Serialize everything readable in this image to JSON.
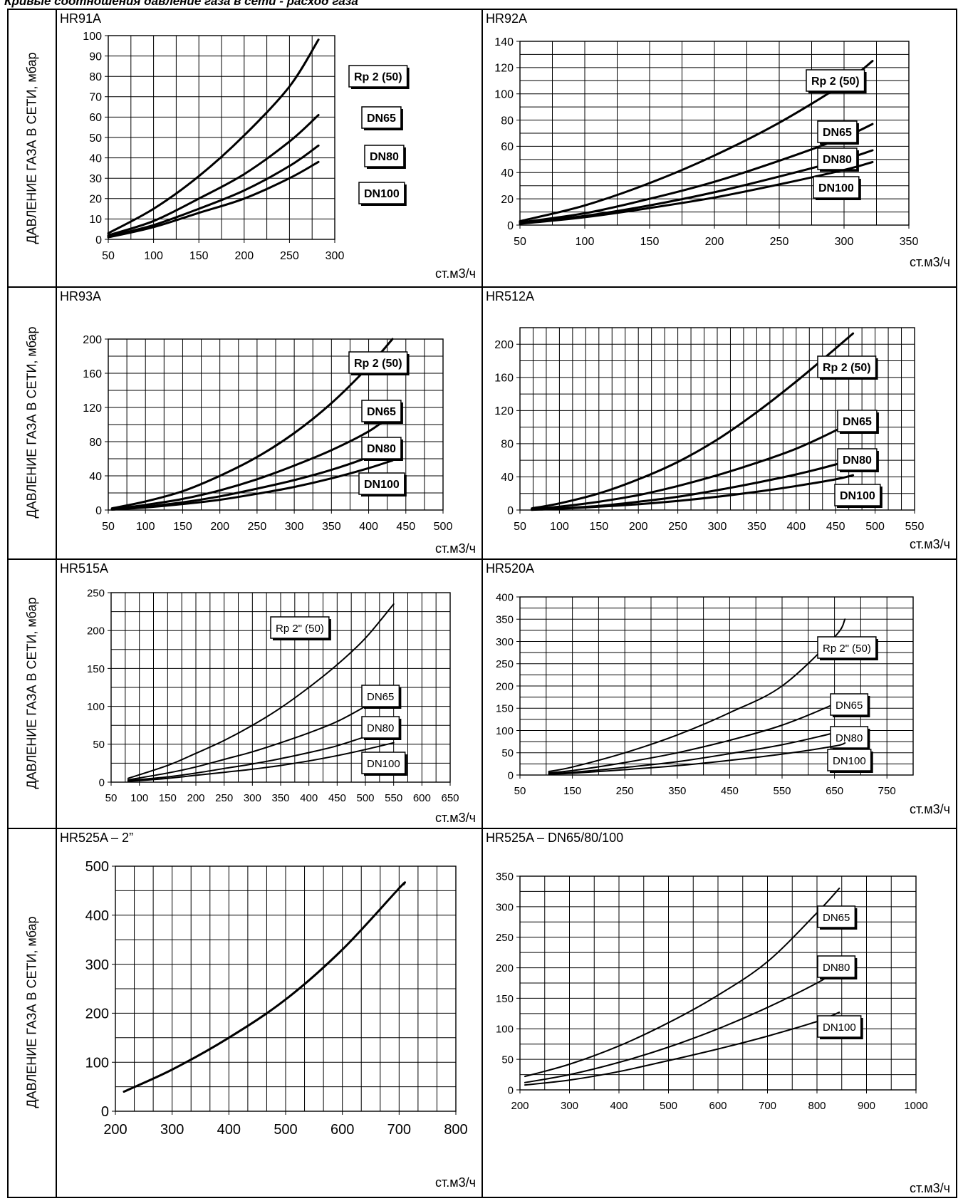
{
  "header": {
    "title": "Кривые соотношения давление газа в сети - расход газа"
  },
  "ylabel": "ДАВЛЕНИЕ ГАЗА В СЕТИ, мбар",
  "unit": "ст.м3/ч",
  "chart_data": [
    {
      "title": "HR91A",
      "type": "line",
      "xlim": [
        50,
        300
      ],
      "ylim": [
        0,
        100
      ],
      "xticks": [
        50,
        100,
        150,
        200,
        250,
        300
      ],
      "yticks": [
        0,
        10,
        20,
        30,
        40,
        50,
        60,
        70,
        80,
        90,
        100
      ],
      "series": [
        {
          "name": "Rp 2 (50)",
          "x": [
            50,
            100,
            150,
            200,
            250,
            282
          ],
          "y": [
            3,
            15,
            31,
            51,
            75,
            98
          ]
        },
        {
          "name": "DN65",
          "x": [
            50,
            100,
            150,
            200,
            250,
            282
          ],
          "y": [
            2,
            9,
            20,
            32,
            48,
            61
          ]
        },
        {
          "name": "DN80",
          "x": [
            50,
            100,
            150,
            200,
            250,
            282
          ],
          "y": [
            1.5,
            7,
            15,
            24,
            36,
            46
          ]
        },
        {
          "name": "DN100",
          "x": [
            50,
            100,
            150,
            200,
            250,
            282
          ],
          "y": [
            1,
            6,
            13,
            20,
            30,
            38
          ]
        }
      ]
    },
    {
      "title": "HR92A",
      "type": "line",
      "xlim": [
        50,
        350
      ],
      "ylim": [
        0,
        140
      ],
      "xticks": [
        50,
        100,
        150,
        200,
        250,
        300,
        350
      ],
      "yticks": [
        0,
        20,
        40,
        60,
        80,
        100,
        120,
        140
      ],
      "series": [
        {
          "name": "Rp 2 (50)",
          "x": [
            50,
            100,
            150,
            200,
            250,
            300,
            322
          ],
          "y": [
            3,
            15,
            32,
            53,
            78,
            108,
            125
          ]
        },
        {
          "name": "DN65",
          "x": [
            50,
            100,
            150,
            200,
            250,
            300,
            322
          ],
          "y": [
            2,
            9,
            20,
            33,
            49,
            67,
            77
          ]
        },
        {
          "name": "DN80",
          "x": [
            50,
            100,
            150,
            200,
            250,
            300,
            322
          ],
          "y": [
            2,
            7,
            15,
            25,
            37,
            50,
            57
          ]
        },
        {
          "name": "DN100",
          "x": [
            50,
            100,
            150,
            200,
            250,
            300,
            322
          ],
          "y": [
            1,
            6,
            13,
            21,
            31,
            42,
            48
          ]
        }
      ]
    },
    {
      "title": "HR93A",
      "type": "line",
      "xlim": [
        50,
        500
      ],
      "ylim": [
        0,
        200
      ],
      "xticks": [
        50,
        100,
        150,
        200,
        250,
        300,
        350,
        400,
        450,
        500
      ],
      "yticks": [
        0,
        40,
        80,
        120,
        160,
        200
      ],
      "series": [
        {
          "name": "Rp 2 (50)",
          "x": [
            55,
            100,
            150,
            200,
            250,
            300,
            350,
            400,
            432
          ],
          "y": [
            2,
            10,
            22,
            40,
            62,
            90,
            125,
            168,
            200
          ]
        },
        {
          "name": "DN65",
          "x": [
            55,
            100,
            150,
            200,
            250,
            300,
            350,
            400,
            432
          ],
          "y": [
            1,
            6,
            13,
            23,
            36,
            52,
            70,
            92,
            112
          ]
        },
        {
          "name": "DN80",
          "x": [
            55,
            100,
            150,
            200,
            250,
            300,
            350,
            400,
            432
          ],
          "y": [
            1,
            4,
            9,
            16,
            25,
            35,
            47,
            62,
            75
          ]
        },
        {
          "name": "DN100",
          "x": [
            55,
            100,
            150,
            200,
            250,
            300,
            350,
            400,
            432
          ],
          "y": [
            0.5,
            3,
            7,
            12,
            19,
            27,
            37,
            49,
            58
          ]
        }
      ]
    },
    {
      "title": "HR512A",
      "type": "line",
      "xlim": [
        50,
        550
      ],
      "ylim": [
        0,
        220
      ],
      "xticks": [
        50,
        100,
        150,
        200,
        250,
        300,
        350,
        400,
        450,
        500,
        550
      ],
      "yticks": [
        0,
        40,
        80,
        120,
        160,
        200
      ],
      "series": [
        {
          "name": "Rp 2 (50)",
          "x": [
            65,
            100,
            150,
            200,
            250,
            300,
            350,
            400,
            450,
            472
          ],
          "y": [
            2,
            8,
            20,
            37,
            58,
            85,
            118,
            155,
            195,
            213
          ]
        },
        {
          "name": "DN65",
          "x": [
            65,
            100,
            150,
            200,
            250,
            300,
            350,
            400,
            450,
            472
          ],
          "y": [
            1,
            4,
            10,
            18,
            29,
            42,
            57,
            74,
            96,
            108
          ]
        },
        {
          "name": "DN80",
          "x": [
            65,
            100,
            150,
            200,
            250,
            300,
            350,
            400,
            450,
            472
          ],
          "y": [
            0.5,
            2,
            5,
            10,
            16,
            24,
            33,
            43,
            55,
            62
          ]
        },
        {
          "name": "DN100",
          "x": [
            65,
            100,
            150,
            200,
            250,
            300,
            350,
            400,
            450,
            472
          ],
          "y": [
            0.3,
            1.5,
            4,
            7,
            11,
            16,
            22,
            29,
            37,
            42
          ]
        }
      ]
    },
    {
      "title": "HR515A",
      "type": "line",
      "xlim": [
        50,
        650
      ],
      "ylim": [
        0,
        250
      ],
      "xticks": [
        50,
        100,
        150,
        200,
        250,
        300,
        350,
        400,
        450,
        500,
        550,
        600,
        650
      ],
      "yticks": [
        0,
        50,
        100,
        150,
        200,
        250
      ],
      "series": [
        {
          "name": "Rp 2\" (50)",
          "x": [
            80,
            150,
            200,
            250,
            300,
            350,
            400,
            450,
            500,
            550
          ],
          "y": [
            5,
            22,
            38,
            55,
            75,
            98,
            125,
            155,
            190,
            235
          ]
        },
        {
          "name": "DN65",
          "x": [
            80,
            150,
            200,
            250,
            300,
            350,
            400,
            450,
            500,
            550
          ],
          "y": [
            3,
            12,
            20,
            30,
            40,
            52,
            65,
            80,
            100,
            122
          ]
        },
        {
          "name": "DN80",
          "x": [
            80,
            150,
            200,
            250,
            300,
            350,
            400,
            450,
            500,
            550
          ],
          "y": [
            2,
            7,
            12,
            18,
            24,
            31,
            39,
            48,
            60,
            72
          ]
        },
        {
          "name": "DN100",
          "x": [
            80,
            150,
            200,
            250,
            300,
            350,
            400,
            450,
            500,
            550
          ],
          "y": [
            1,
            5,
            9,
            13,
            17,
            22,
            28,
            35,
            43,
            52
          ]
        }
      ]
    },
    {
      "title": "HR520A",
      "type": "line",
      "xlim": [
        50,
        800
      ],
      "ylim": [
        0,
        400
      ],
      "xticks": [
        50,
        150,
        250,
        350,
        450,
        550,
        650,
        750
      ],
      "yticks": [
        0,
        50,
        100,
        150,
        200,
        250,
        300,
        350,
        400
      ],
      "series": [
        {
          "name": "Rp 2\" (50)",
          "x": [
            105,
            150,
            250,
            350,
            450,
            550,
            650,
            670
          ],
          "y": [
            8,
            18,
            50,
            90,
            140,
            200,
            310,
            350
          ]
        },
        {
          "name": "DN65",
          "x": [
            105,
            150,
            250,
            350,
            450,
            550,
            650,
            670
          ],
          "y": [
            5,
            10,
            28,
            50,
            78,
            112,
            160,
            178
          ]
        },
        {
          "name": "DN80",
          "x": [
            105,
            150,
            250,
            350,
            450,
            550,
            650,
            670
          ],
          "y": [
            3,
            6,
            17,
            30,
            48,
            68,
            95,
            105
          ]
        },
        {
          "name": "DN100",
          "x": [
            105,
            150,
            250,
            350,
            450,
            550,
            650,
            670
          ],
          "y": [
            2,
            4,
            12,
            21,
            33,
            47,
            65,
            72
          ]
        }
      ]
    },
    {
      "title": "HR525A – 2”",
      "type": "line",
      "xlim": [
        200,
        800
      ],
      "ylim": [
        0,
        500
      ],
      "xticks": [
        200,
        300,
        400,
        500,
        600,
        700,
        800
      ],
      "yticks": [
        0,
        100,
        200,
        300,
        400,
        500
      ],
      "series": [
        {
          "name": "",
          "x": [
            215,
            300,
            400,
            500,
            600,
            700,
            708
          ],
          "y": [
            40,
            85,
            150,
            228,
            330,
            455,
            463
          ]
        }
      ]
    },
    {
      "title": "HR525A – DN65/80/100",
      "type": "line",
      "xlim": [
        200,
        1000
      ],
      "ylim": [
        0,
        350
      ],
      "xticks": [
        200,
        300,
        400,
        500,
        600,
        700,
        800,
        900,
        1000
      ],
      "yticks": [
        0,
        50,
        100,
        150,
        200,
        250,
        300,
        350
      ],
      "series": [
        {
          "name": "DN65",
          "x": [
            210,
            300,
            400,
            500,
            600,
            700,
            800,
            845
          ],
          "y": [
            22,
            42,
            72,
            110,
            155,
            210,
            290,
            330
          ]
        },
        {
          "name": "DN80",
          "x": [
            210,
            300,
            400,
            500,
            600,
            700,
            800,
            845
          ],
          "y": [
            12,
            25,
            45,
            70,
            100,
            135,
            175,
            197
          ]
        },
        {
          "name": "DN100",
          "x": [
            210,
            300,
            400,
            500,
            600,
            700,
            800,
            845
          ],
          "y": [
            8,
            16,
            30,
            48,
            67,
            88,
            112,
            127
          ]
        }
      ]
    }
  ]
}
